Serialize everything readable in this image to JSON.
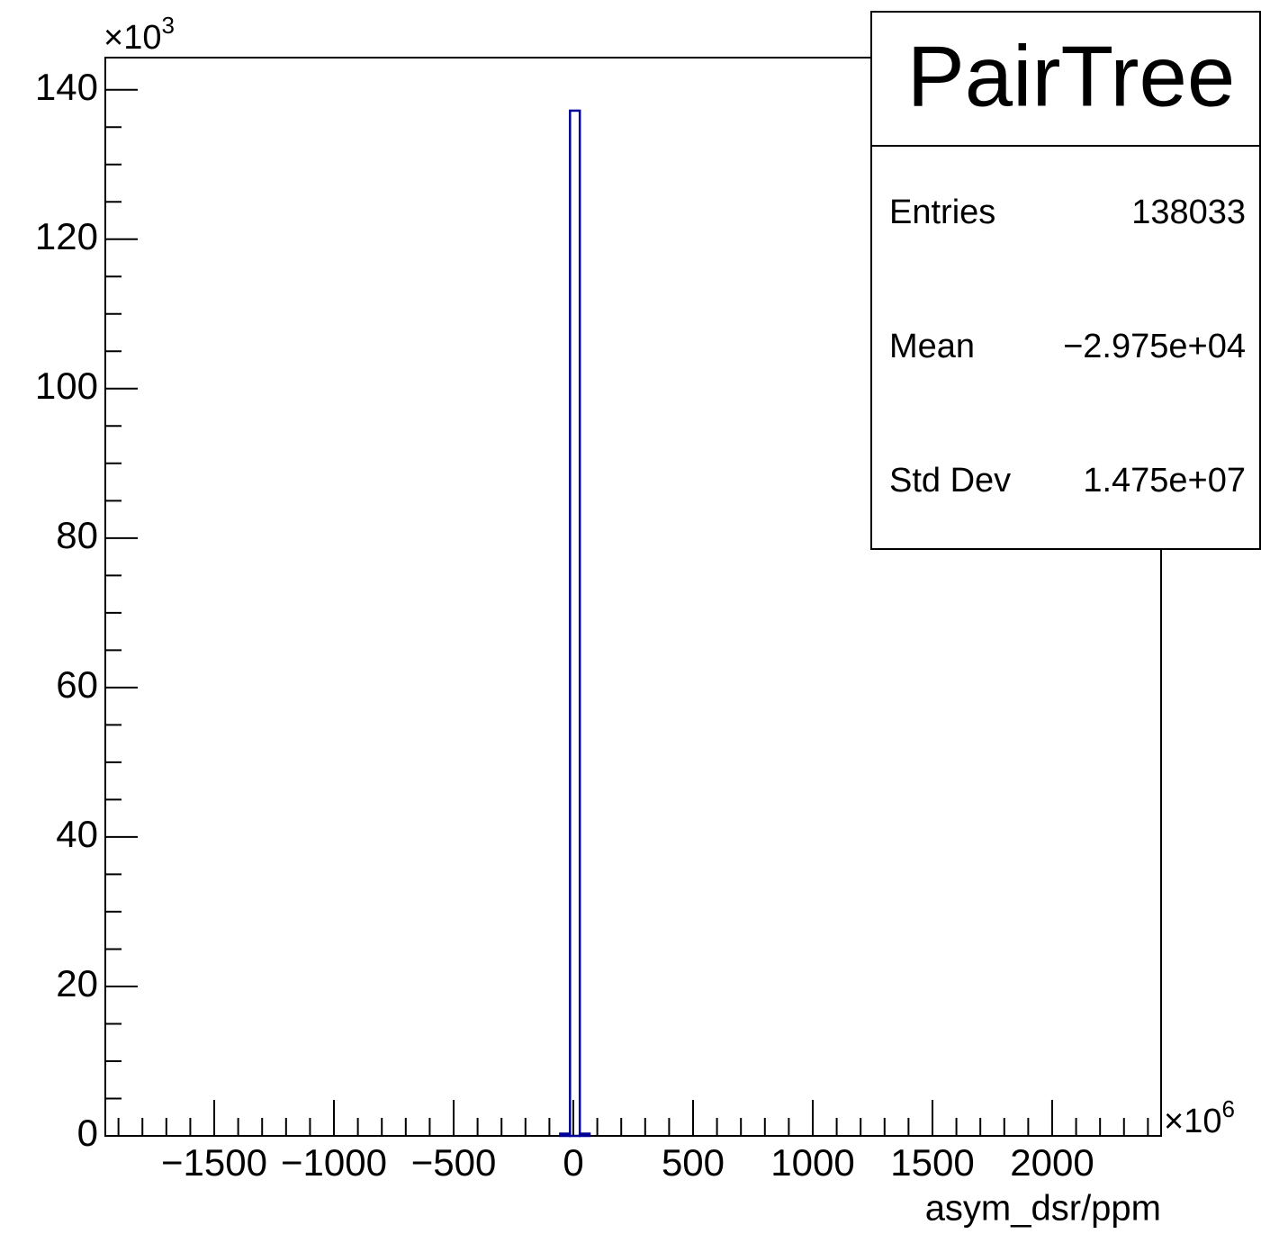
{
  "chart_data": {
    "type": "histogram",
    "x_label": "asym_dsr/ppm",
    "x_multiplier": {
      "base": "×10",
      "exponent": "6"
    },
    "y_multiplier": {
      "base": "×10",
      "exponent": "3"
    },
    "bins": [
      -55,
      -14,
      27,
      68
    ],
    "counts": [
      0.3,
      137.2,
      0.3
    ],
    "color": "#000099",
    "xlim": [
      -1955,
      2455
    ],
    "ylim": [
      0,
      144.3
    ],
    "xticks": [
      {
        "value": -1500,
        "label": "−1500"
      },
      {
        "value": -1000,
        "label": "−1000"
      },
      {
        "value": -500,
        "label": "−500"
      },
      0,
      500,
      1000,
      1500,
      2000
    ],
    "xticks_minor": [
      -1900,
      -1800,
      -1700,
      -1600,
      -1400,
      -1300,
      -1200,
      -1100,
      -900,
      -800,
      -700,
      -600,
      -400,
      -300,
      -200,
      -100,
      100,
      200,
      300,
      400,
      600,
      700,
      800,
      900,
      1100,
      1200,
      1300,
      1400,
      1600,
      1700,
      1800,
      1900,
      2100,
      2200,
      2300,
      2400
    ],
    "yticks": [
      0,
      20,
      40,
      60,
      80,
      100,
      120,
      140
    ],
    "yticks_minor": [
      5,
      10,
      15,
      25,
      30,
      35,
      45,
      50,
      55,
      65,
      70,
      75,
      85,
      90,
      95,
      105,
      110,
      115,
      125,
      130,
      135
    ],
    "stats": {
      "title": "PairTree",
      "rows": [
        [
          "Entries",
          "138033"
        ],
        [
          "Mean",
          "−2.975e+04"
        ],
        [
          "Std Dev",
          "1.475e+07"
        ]
      ]
    }
  }
}
